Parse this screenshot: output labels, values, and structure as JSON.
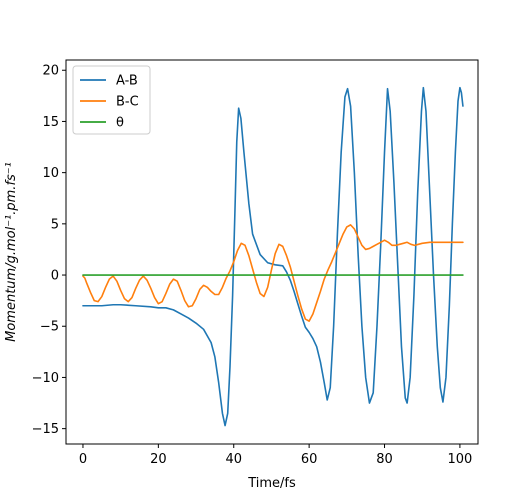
{
  "chart_data": {
    "type": "line",
    "title": "",
    "xlabel": "Time/fs",
    "ylabel": "Momentum/g.mol⁻¹.pm.fs⁻¹",
    "xlim": [
      -4.5,
      104.8
    ],
    "ylim": [
      -16.5,
      21
    ],
    "xticks": [
      0,
      20,
      40,
      60,
      80,
      100
    ],
    "yticks": [
      -15,
      -10,
      -5,
      0,
      5,
      10,
      15,
      20
    ],
    "legend_position": "top-left",
    "grid": false,
    "series": [
      {
        "name": "A-B",
        "color": "#1f77b4",
        "points": [
          [
            0,
            -3.0
          ],
          [
            5,
            -3.0
          ],
          [
            8,
            -2.9
          ],
          [
            10,
            -2.9
          ],
          [
            14,
            -3.0
          ],
          [
            18,
            -3.1
          ],
          [
            20,
            -3.2
          ],
          [
            22,
            -3.2
          ],
          [
            24,
            -3.4
          ],
          [
            26,
            -3.8
          ],
          [
            28,
            -4.2
          ],
          [
            30,
            -4.7
          ],
          [
            32,
            -5.3
          ],
          [
            34,
            -6.6
          ],
          [
            35,
            -8.0
          ],
          [
            36,
            -10.5
          ],
          [
            37,
            -13.5
          ],
          [
            37.7,
            -14.7
          ],
          [
            38.4,
            -13.5
          ],
          [
            39,
            -9
          ],
          [
            39.7,
            -2
          ],
          [
            40.3,
            6
          ],
          [
            40.8,
            13
          ],
          [
            41.3,
            16.3
          ],
          [
            41.9,
            15.3
          ],
          [
            42.7,
            12
          ],
          [
            44,
            7
          ],
          [
            45,
            4
          ],
          [
            47,
            2
          ],
          [
            49,
            1.2
          ],
          [
            51,
            1.0
          ],
          [
            53,
            0.9
          ],
          [
            54,
            0.3
          ],
          [
            55,
            -0.5
          ],
          [
            56,
            -1.6
          ],
          [
            57,
            -2.8
          ],
          [
            58,
            -4.0
          ],
          [
            59,
            -5.1
          ],
          [
            60,
            -5.6
          ],
          [
            61,
            -6.2
          ],
          [
            62,
            -7.0
          ],
          [
            63,
            -8.5
          ],
          [
            64,
            -10.5
          ],
          [
            64.8,
            -12.2
          ],
          [
            65.6,
            -11.0
          ],
          [
            66.5,
            -5
          ],
          [
            67.5,
            4
          ],
          [
            68.5,
            12
          ],
          [
            69.5,
            17.4
          ],
          [
            70.2,
            18.2
          ],
          [
            71,
            16.5
          ],
          [
            72,
            10
          ],
          [
            73,
            2
          ],
          [
            74,
            -5
          ],
          [
            75,
            -10
          ],
          [
            76,
            -12.5
          ],
          [
            77,
            -11.5
          ],
          [
            78,
            -5
          ],
          [
            79,
            3
          ],
          [
            80,
            12
          ],
          [
            80.8,
            18.2
          ],
          [
            81.5,
            16
          ],
          [
            82.5,
            9
          ],
          [
            83.5,
            1
          ],
          [
            84.5,
            -7
          ],
          [
            85.5,
            -12
          ],
          [
            86,
            -12.5
          ],
          [
            86.8,
            -10
          ],
          [
            87.8,
            -2
          ],
          [
            88.8,
            8
          ],
          [
            89.8,
            16
          ],
          [
            90.3,
            18.3
          ],
          [
            91,
            16
          ],
          [
            92,
            8
          ],
          [
            93,
            0
          ],
          [
            94,
            -7
          ],
          [
            94.8,
            -11
          ],
          [
            95.5,
            -12.4
          ],
          [
            96.3,
            -10
          ],
          [
            97.2,
            -3
          ],
          [
            98,
            5
          ],
          [
            98.8,
            12
          ],
          [
            99.5,
            17
          ],
          [
            100,
            18.3
          ],
          [
            100.4,
            17.8
          ],
          [
            100.8,
            16.5
          ]
        ]
      },
      {
        "name": "B-C",
        "color": "#ff7f0e",
        "points": [
          [
            0,
            -0.1
          ],
          [
            0.5,
            -0.3
          ],
          [
            1,
            -0.8
          ],
          [
            2,
            -1.7
          ],
          [
            3,
            -2.5
          ],
          [
            4,
            -2.6
          ],
          [
            5,
            -2.1
          ],
          [
            6,
            -1.2
          ],
          [
            7,
            -0.4
          ],
          [
            8,
            -0.1
          ],
          [
            9,
            -0.6
          ],
          [
            10,
            -1.5
          ],
          [
            11,
            -2.3
          ],
          [
            12,
            -2.6
          ],
          [
            13,
            -2.2
          ],
          [
            14,
            -1.3
          ],
          [
            15,
            -0.5
          ],
          [
            16,
            -0.1
          ],
          [
            17,
            -0.5
          ],
          [
            18,
            -1.3
          ],
          [
            19,
            -2.2
          ],
          [
            20,
            -2.8
          ],
          [
            21,
            -2.6
          ],
          [
            22,
            -1.8
          ],
          [
            23,
            -0.9
          ],
          [
            24,
            -0.4
          ],
          [
            25,
            -0.6
          ],
          [
            26,
            -1.5
          ],
          [
            27,
            -2.5
          ],
          [
            28,
            -3.1
          ],
          [
            29,
            -3.0
          ],
          [
            30,
            -2.3
          ],
          [
            31,
            -1.4
          ],
          [
            32,
            -1.0
          ],
          [
            33,
            -1.2
          ],
          [
            34,
            -1.6
          ],
          [
            35,
            -1.9
          ],
          [
            36,
            -1.9
          ],
          [
            37,
            -1.2
          ],
          [
            38,
            -0.3
          ],
          [
            39,
            0.4
          ],
          [
            40,
            1.3
          ],
          [
            41,
            2.4
          ],
          [
            42,
            3.1
          ],
          [
            43,
            2.9
          ],
          [
            44,
            1.9
          ],
          [
            45,
            0.6
          ],
          [
            46,
            -0.7
          ],
          [
            47,
            -1.8
          ],
          [
            48,
            -2.1
          ],
          [
            49,
            -1.2
          ],
          [
            50,
            0.5
          ],
          [
            51,
            2.1
          ],
          [
            52,
            3.0
          ],
          [
            53,
            2.8
          ],
          [
            54,
            1.9
          ],
          [
            55,
            0.8
          ],
          [
            56,
            -0.6
          ],
          [
            57,
            -2.0
          ],
          [
            58,
            -3.3
          ],
          [
            59,
            -4.3
          ],
          [
            60,
            -4.5
          ],
          [
            61,
            -3.8
          ],
          [
            62,
            -2.7
          ],
          [
            63,
            -1.6
          ],
          [
            64,
            -0.4
          ],
          [
            65,
            0.5
          ],
          [
            66,
            1.3
          ],
          [
            67,
            2.2
          ],
          [
            68,
            3.1
          ],
          [
            69,
            4.0
          ],
          [
            70,
            4.7
          ],
          [
            71,
            4.9
          ],
          [
            72,
            4.5
          ],
          [
            73,
            3.7
          ],
          [
            74,
            2.9
          ],
          [
            75,
            2.5
          ],
          [
            76,
            2.6
          ],
          [
            77,
            2.8
          ],
          [
            78,
            3.0
          ],
          [
            79,
            3.2
          ],
          [
            80,
            3.4
          ],
          [
            81,
            3.2
          ],
          [
            82,
            2.9
          ],
          [
            83,
            2.9
          ],
          [
            84,
            3.0
          ],
          [
            85,
            3.1
          ],
          [
            86,
            3.2
          ],
          [
            87,
            3.0
          ],
          [
            88,
            2.9
          ],
          [
            89,
            3.0
          ],
          [
            90,
            3.1
          ],
          [
            92,
            3.2
          ],
          [
            94,
            3.2
          ],
          [
            96,
            3.2
          ],
          [
            98,
            3.2
          ],
          [
            100,
            3.2
          ],
          [
            100.8,
            3.2
          ]
        ]
      },
      {
        "name": "θ",
        "color": "#2ca02c",
        "points": [
          [
            0,
            0
          ],
          [
            100.8,
            0
          ]
        ]
      }
    ]
  }
}
